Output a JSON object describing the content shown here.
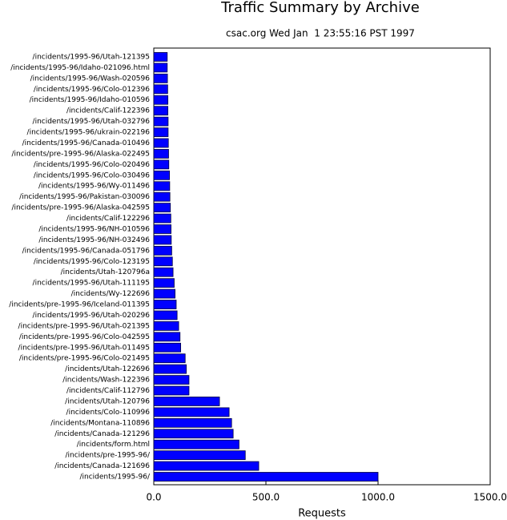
{
  "chart_data": {
    "type": "bar",
    "orientation": "horizontal",
    "title": "Traffic Summary by Archive",
    "subtitle": "csac.org Wed Jan  1 23:55:16 PST 1997",
    "xlabel": "Requests",
    "color": "#0000ff",
    "categories": [
      "/incidents/1995-96/Utah-121395",
      "/incidents/1995-96/Idaho-021096.html",
      "/incidents/1995-96/Wash-020596",
      "/incidents/1995-96/Colo-012396",
      "/incidents/1995-96/Idaho-010596",
      "/incidents/Calif-122396",
      "/incidents/1995-96/Utah-032796",
      "/incidents/1995-96/ukrain-022196",
      "/incidents/1995-96/Canada-010496",
      "/incidents/pre-1995-96/Alaska-022495",
      "/incidents/1995-96/Colo-020496",
      "/incidents/1995-96/Colo-030496",
      "/incidents/1995-96/Wy-011496",
      "/incidents/1995-96/Pakistan-030096",
      "/incidents/pre-1995-96/Alaska-042595",
      "/incidents/Calif-122296",
      "/incidents/1995-96/NH-010596",
      "/incidents/1995-96/NH-032496",
      "/incidents/1995-96/Canada-051796",
      "/incidents/1995-96/Colo-123195",
      "/incidents/Utah-120796a",
      "/incidents/1995-96/Utah-111195",
      "/incidents/Wy-122696",
      "/incidents/pre-1995-96/Iceland-011395",
      "/incidents/1995-96/Utah-020296",
      "/incidents/pre-1995-96/Utah-021395",
      "/incidents/pre-1995-96/Colo-042595",
      "/incidents/pre-1995-96/Utah-011495",
      "/incidents/pre-1995-96/Colo-021495",
      "/incidents/Utah-122696",
      "/incidents/Wash-122396",
      "/incidents/Calif-112796",
      "/incidents/Utah-120796",
      "/incidents/Colo-110996",
      "/incidents/Montana-110896",
      "/incidents/Canada-121296",
      "/incidents/form.html",
      "/incidents/pre-1995-96/",
      "/incidents/Canada-121696",
      "/incidents/1995-96/"
    ],
    "values": [
      60,
      60,
      61,
      62,
      63,
      63,
      64,
      64,
      65,
      66,
      67,
      70,
      71,
      72,
      74,
      76,
      77,
      78,
      80,
      83,
      86,
      91,
      95,
      100,
      104,
      111,
      117,
      120,
      140,
      145,
      157,
      157,
      293,
      336,
      347,
      354,
      380,
      408,
      468,
      1000
    ],
    "xlim": [
      0,
      1500
    ],
    "xticks": [
      {
        "value": 0,
        "label": "0.0"
      },
      {
        "value": 500,
        "label": "500.0"
      },
      {
        "value": 1000,
        "label": "1000.0"
      },
      {
        "value": 1500,
        "label": "1500.0"
      }
    ]
  }
}
